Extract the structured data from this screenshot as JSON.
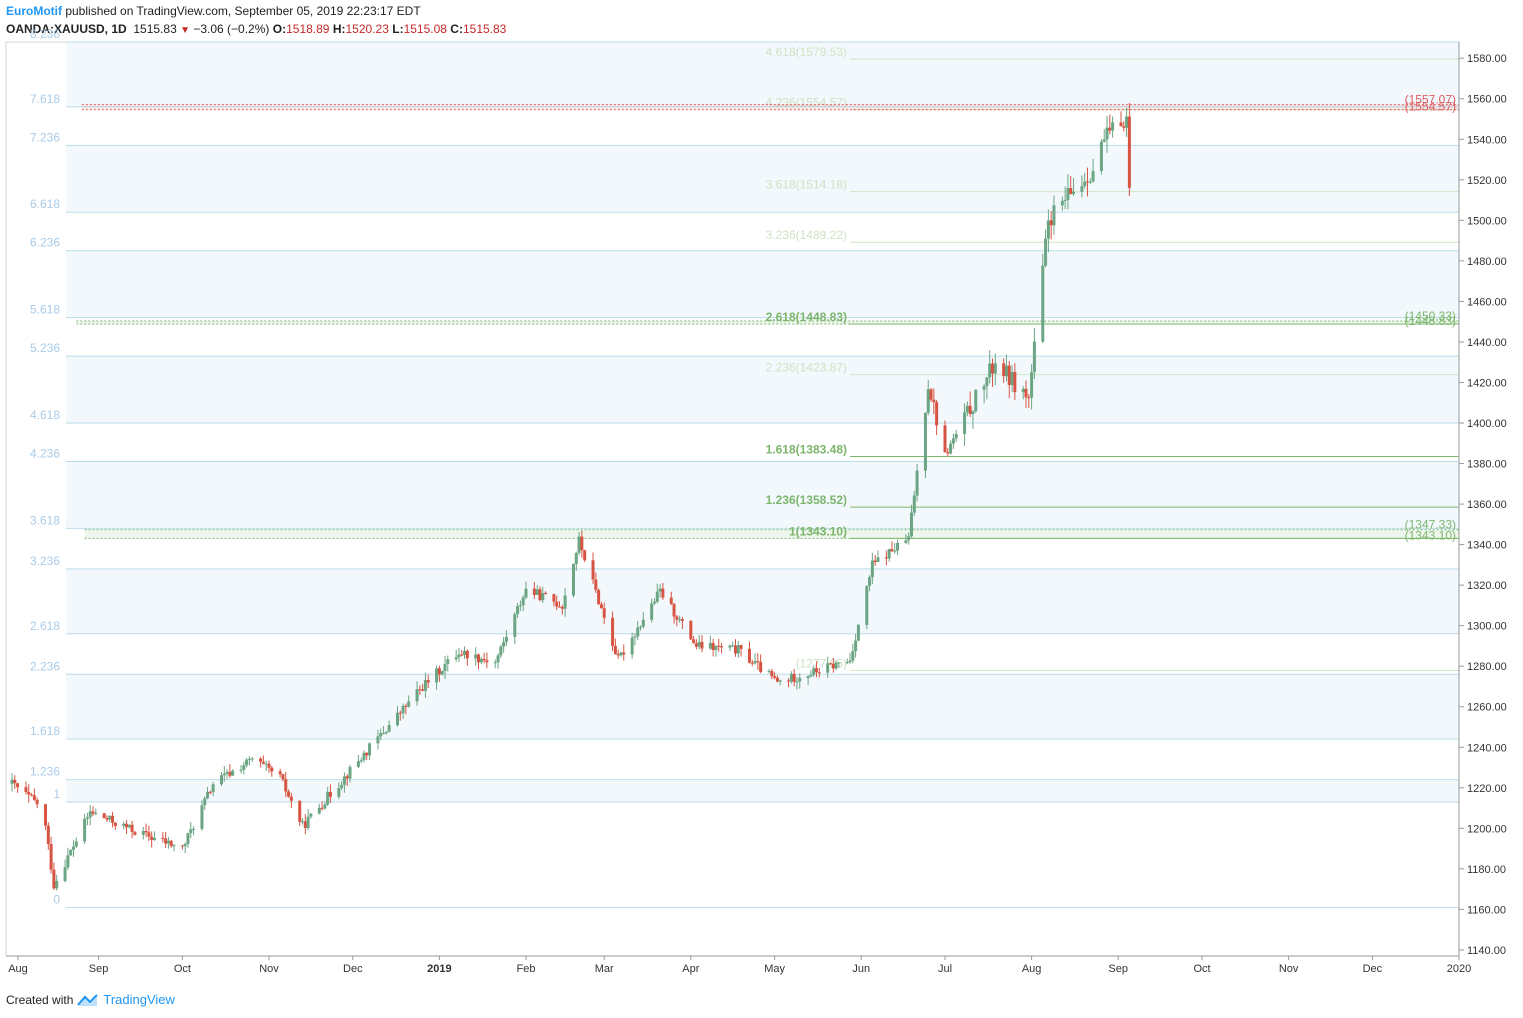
{
  "header": {
    "author": "EuroMotif",
    "published": " published on TradingView.com, September 05, 2019 22:23:17 EDT",
    "symbol": "OANDA:XAUUSD, 1D",
    "price": "1515.83",
    "change": "−3.06 (−0.2%)",
    "o_label": "O:",
    "o": "1518.89",
    "h_label": "H:",
    "h": "1520.23",
    "l_label": "L:",
    "l": "1515.08",
    "c_label": "C:",
    "c": "1515.83"
  },
  "footer": {
    "created": "Created with",
    "brand": "TradingView"
  },
  "colors": {
    "up": "#6ba583",
    "down": "#d75442",
    "fib_band": "#f3f8fd",
    "fib_line": "#b9dde8",
    "green": "#7cb66c",
    "red": "#e06060"
  },
  "chart_data": {
    "type": "candlestick",
    "y_axis": {
      "ticks": [
        1140,
        1160,
        1180,
        1200,
        1220,
        1240,
        1260,
        1280,
        1300,
        1320,
        1340,
        1360,
        1380,
        1400,
        1420,
        1440,
        1460,
        1480,
        1500,
        1520,
        1540,
        1560,
        1580
      ],
      "range": [
        1137,
        1588
      ]
    },
    "x_axis": {
      "labels": [
        "Aug",
        "Sep",
        "Oct",
        "Nov",
        "Dec",
        "2019",
        "Feb",
        "Mar",
        "Apr",
        "May",
        "Jun",
        "Jul",
        "Aug",
        "Sep",
        "Oct",
        "Nov",
        "Dec",
        "2020"
      ]
    },
    "time_range": [
      "2018-08-01",
      "2020-01-01"
    ],
    "left_fib": {
      "levels": [
        {
          "ratio": "0",
          "price": 1161
        },
        {
          "ratio": "1",
          "price": 1213
        },
        {
          "ratio": "1.236",
          "price": 1224
        },
        {
          "ratio": "1.618",
          "price": 1244
        },
        {
          "ratio": "2.236",
          "price": 1276
        },
        {
          "ratio": "2.618",
          "price": 1296
        },
        {
          "ratio": "3.236",
          "price": 1328
        },
        {
          "ratio": "3.618",
          "price": 1348
        },
        {
          "ratio": "4.236",
          "price": 1381
        },
        {
          "ratio": "4.618",
          "price": 1400
        },
        {
          "ratio": "5.236",
          "price": 1433
        },
        {
          "ratio": "5.618",
          "price": 1452
        },
        {
          "ratio": "6.236",
          "price": 1485
        },
        {
          "ratio": "6.618",
          "price": 1504
        },
        {
          "ratio": "7.236",
          "price": 1537
        },
        {
          "ratio": "7.618",
          "price": 1556
        },
        {
          "ratio": "8.236",
          "price": 1588
        }
      ]
    },
    "right_fib": {
      "start_date": "2019-05-28",
      "levels": [
        {
          "label": "(1277.95)",
          "price": 1277.95
        },
        {
          "label": "1(1343.10)",
          "price": 1343.1
        },
        {
          "label": "1.236(1358.52)",
          "price": 1358.52
        },
        {
          "label": "1.618(1383.48)",
          "price": 1383.48
        },
        {
          "label": "2.236(1423.87)",
          "price": 1423.87
        },
        {
          "label": "2.618(1448.83)",
          "price": 1448.83
        },
        {
          "label": "3.236(1489.22)",
          "price": 1489.22
        },
        {
          "label": "3.618(1514.18)",
          "price": 1514.18
        },
        {
          "label": "4.236(1554.57)",
          "price": 1554.57
        },
        {
          "label": "4.618(1579.53)",
          "price": 1579.53
        }
      ]
    },
    "zones": [
      {
        "color": "green",
        "start_date": "2018-08-27",
        "low": 1343.1,
        "high": 1347.33,
        "labels": [
          "(1347.33)",
          "(1343.10)"
        ]
      },
      {
        "color": "green",
        "start_date": "2018-08-24",
        "low": 1448.83,
        "high": 1450.33,
        "labels": [
          "(1450.33)",
          "(1448.83)"
        ]
      },
      {
        "color": "red",
        "start_date": "2018-08-26",
        "low": 1554.57,
        "high": 1557.07,
        "labels": [
          "(1557.07)",
          "(1554.57)"
        ]
      }
    ],
    "anchors": [
      {
        "date": "2018-08-01",
        "price": 1222
      },
      {
        "date": "2018-08-12",
        "price": 1210
      },
      {
        "date": "2018-08-16",
        "price": 1172
      },
      {
        "date": "2018-08-29",
        "price": 1208
      },
      {
        "date": "2018-09-15",
        "price": 1198
      },
      {
        "date": "2018-10-01",
        "price": 1190
      },
      {
        "date": "2018-10-12",
        "price": 1222
      },
      {
        "date": "2018-10-26",
        "price": 1234
      },
      {
        "date": "2018-11-05",
        "price": 1225
      },
      {
        "date": "2018-11-13",
        "price": 1201
      },
      {
        "date": "2018-11-26",
        "price": 1222
      },
      {
        "date": "2018-12-11",
        "price": 1246
      },
      {
        "date": "2018-12-26",
        "price": 1270
      },
      {
        "date": "2019-01-08",
        "price": 1287
      },
      {
        "date": "2019-01-21",
        "price": 1282
      },
      {
        "date": "2019-02-01",
        "price": 1318
      },
      {
        "date": "2019-02-14",
        "price": 1310
      },
      {
        "date": "2019-02-20",
        "price": 1342
      },
      {
        "date": "2019-03-06",
        "price": 1283
      },
      {
        "date": "2019-03-21",
        "price": 1317
      },
      {
        "date": "2019-04-03",
        "price": 1290
      },
      {
        "date": "2019-04-18",
        "price": 1288
      },
      {
        "date": "2019-05-02",
        "price": 1272
      },
      {
        "date": "2019-05-17",
        "price": 1278
      },
      {
        "date": "2019-05-28",
        "price": 1283
      },
      {
        "date": "2019-06-05",
        "price": 1330
      },
      {
        "date": "2019-06-18",
        "price": 1343
      },
      {
        "date": "2019-06-25",
        "price": 1420
      },
      {
        "date": "2019-07-01",
        "price": 1384
      },
      {
        "date": "2019-07-19",
        "price": 1430
      },
      {
        "date": "2019-07-31",
        "price": 1412
      },
      {
        "date": "2019-08-07",
        "price": 1500
      },
      {
        "date": "2019-08-13",
        "price": 1510
      },
      {
        "date": "2019-08-23",
        "price": 1525
      },
      {
        "date": "2019-08-27",
        "price": 1540
      },
      {
        "date": "2019-09-03",
        "price": 1550
      },
      {
        "date": "2019-09-04",
        "price": 1550
      },
      {
        "date": "2019-09-05",
        "price": 1515.83
      }
    ]
  }
}
